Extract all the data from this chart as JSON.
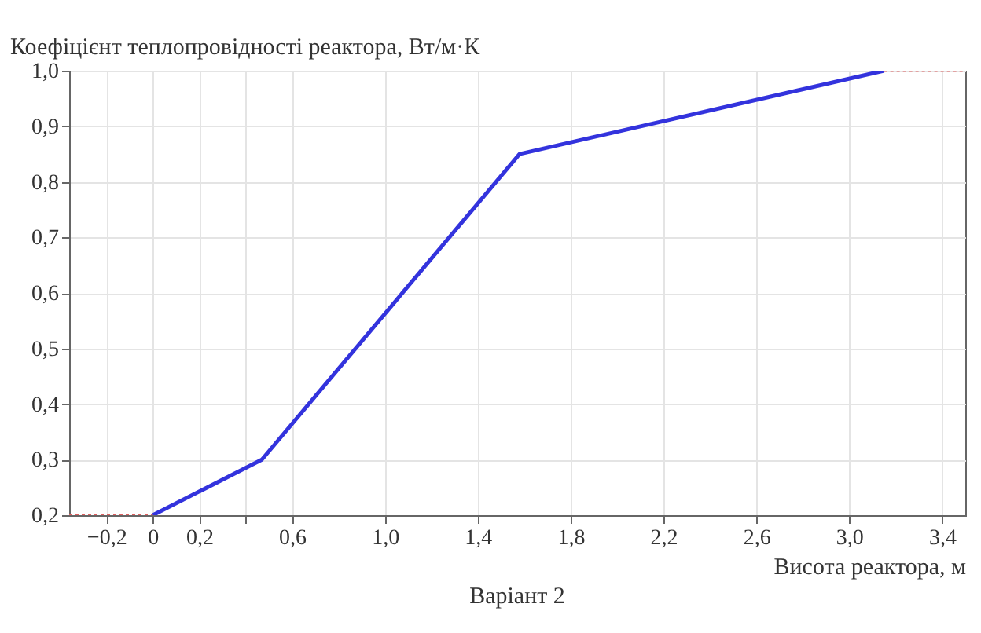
{
  "chart_data": {
    "type": "line",
    "title": "Варіант 2",
    "xlabel": "Висота реактора, м",
    "ylabel": "Коефіцієнт теплопровідності реактора, Вт/м·К",
    "series": [
      {
        "color": "#3333dd",
        "x": [
          0,
          0.47,
          1.58,
          3.15
        ],
        "values": [
          0.2,
          0.3,
          0.85,
          1.0
        ]
      },
      {
        "color": "#e06060",
        "x": [
          -0.36,
          0
        ],
        "values": [
          0.2,
          0.2
        ],
        "line_style": "dotted"
      },
      {
        "color": "#e06060",
        "x": [
          3.15,
          3.5
        ],
        "values": [
          1.0,
          1.0
        ],
        "line_style": "dotted"
      }
    ],
    "xlim": [
      -0.36,
      3.5
    ],
    "ylim": [
      0.2,
      1.0
    ],
    "xticks": [
      {
        "value": -0.2,
        "label": "−0,2"
      },
      {
        "value": 0,
        "label": "0"
      },
      {
        "value": 0.2,
        "label": "0,2"
      },
      {
        "value": 0.4,
        "label": null
      },
      {
        "value": 0.6,
        "label": "0,6"
      },
      {
        "value": 1.0,
        "label": "1,0"
      },
      {
        "value": 1.4,
        "label": "1,4"
      },
      {
        "value": 1.8,
        "label": "1,8"
      },
      {
        "value": 2.2,
        "label": "2,2"
      },
      {
        "value": 2.6,
        "label": "2,6"
      },
      {
        "value": 3.0,
        "label": "3,0"
      },
      {
        "value": 3.4,
        "label": "3,4"
      }
    ],
    "yticks": [
      {
        "value": 0.2,
        "label": "0,2"
      },
      {
        "value": 0.3,
        "label": "0,3"
      },
      {
        "value": 0.4,
        "label": "0,4"
      },
      {
        "value": 0.5,
        "label": "0,5"
      },
      {
        "value": 0.6,
        "label": "0,6"
      },
      {
        "value": 0.7,
        "label": "0,7"
      },
      {
        "value": 0.8,
        "label": "0,8"
      },
      {
        "value": 0.9,
        "label": "0,9"
      },
      {
        "value": 1.0,
        "label": "1,0"
      }
    ],
    "grid": true,
    "marker": "none",
    "line_style": "solid"
  }
}
